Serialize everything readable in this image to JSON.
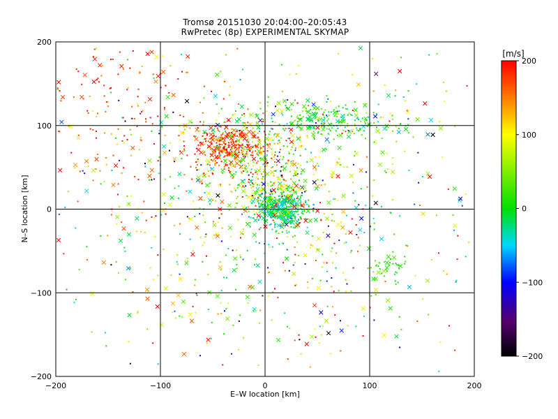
{
  "chart_data": {
    "type": "scatter",
    "title": "Tromsø 20151030 20:04:00–20:05:43",
    "subtitle": "RwPretec (8p) EXPERIMENTAL SKYMAP",
    "xlabel": "E–W location [km]",
    "ylabel": "N–S location [km]",
    "xlim": [
      -200,
      200
    ],
    "ylim": [
      -200,
      200
    ],
    "xticks": [
      "-200",
      "-100",
      "0",
      "100",
      "200"
    ],
    "yticks": [
      "-200",
      "-100",
      "0",
      "100",
      "200"
    ],
    "grid": true,
    "colorbar": {
      "label": "[m/s]",
      "range": [
        -200,
        200
      ],
      "ticks": [
        "-200",
        "-100",
        "0",
        "100",
        "200"
      ],
      "colormap": "rainbow"
    },
    "markers": [
      "small-dot",
      "cross"
    ],
    "clusters": [
      {
        "x": 15,
        "y": 0,
        "sx": 14,
        "sy": 12,
        "n": 420,
        "v": -10,
        "sv": 35
      },
      {
        "x": -35,
        "y": 75,
        "sx": 18,
        "sy": 14,
        "n": 300,
        "v": 180,
        "sv": 25
      },
      {
        "x": -5,
        "y": 45,
        "sx": 30,
        "sy": 30,
        "n": 350,
        "v": 80,
        "sv": 60
      },
      {
        "x": 60,
        "y": 105,
        "sx": 40,
        "sy": 12,
        "n": 250,
        "v": 10,
        "sv": 40
      },
      {
        "x": 120,
        "y": -70,
        "sx": 10,
        "sy": 12,
        "n": 40,
        "v": 10,
        "sv": 15
      },
      {
        "x": -140,
        "y": 120,
        "sx": 40,
        "sy": 50,
        "n": 150,
        "v": 180,
        "sv": 30
      },
      {
        "x": 0,
        "y": 0,
        "sx": 95,
        "sy": 95,
        "n": 900,
        "v": 50,
        "sv": 110
      }
    ]
  }
}
